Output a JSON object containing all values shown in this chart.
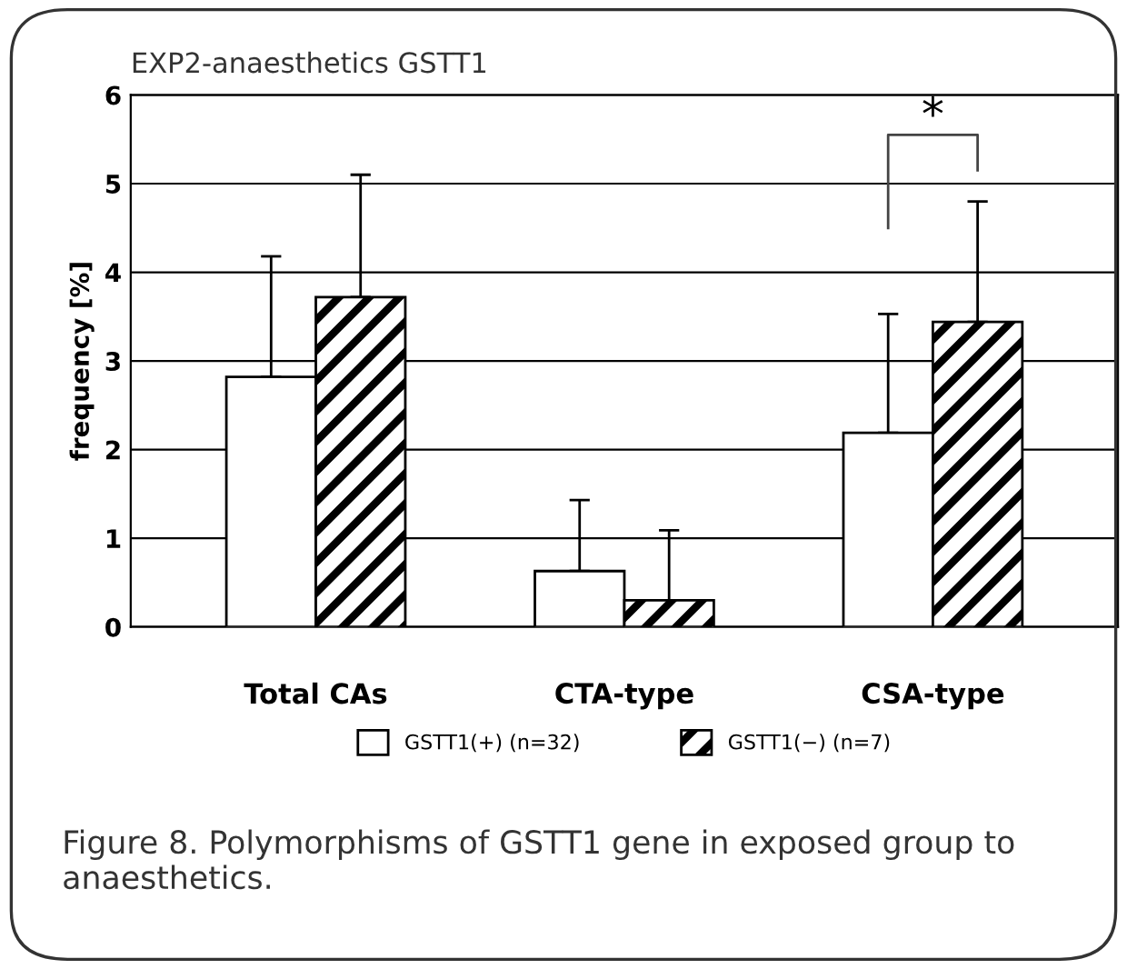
{
  "chart_data": {
    "type": "bar",
    "title": "EXP2-anaesthetics GSTT1",
    "ylabel": "frequency [%]",
    "categories": [
      "Total CAs",
      "CTA-type",
      "CSA-type"
    ],
    "series": [
      {
        "name": "GSTT1(+) (n=32)",
        "color": "#ffffff",
        "values": [
          2.82,
          0.63,
          2.19
        ],
        "errors": [
          [
            2.82,
            4.18
          ],
          [
            0.63,
            1.43
          ],
          [
            2.19,
            3.53
          ]
        ]
      },
      {
        "name": "GSTT1(−) (n=7)",
        "color": "#000000",
        "values": [
          3.72,
          0.3,
          3.44
        ],
        "errors": [
          [
            3.72,
            5.1
          ],
          [
            0.3,
            1.09
          ],
          [
            3.44,
            4.8
          ]
        ]
      }
    ],
    "ylim": [
      0,
      6
    ],
    "yticks": [
      0,
      1,
      2,
      3,
      4,
      5,
      6
    ],
    "grid": "y",
    "legend": "bottom",
    "annotations": [
      "*",
      "Figure 8. Polymorphisms of GSTT1 gene in exposed group to anaesthetics."
    ]
  }
}
